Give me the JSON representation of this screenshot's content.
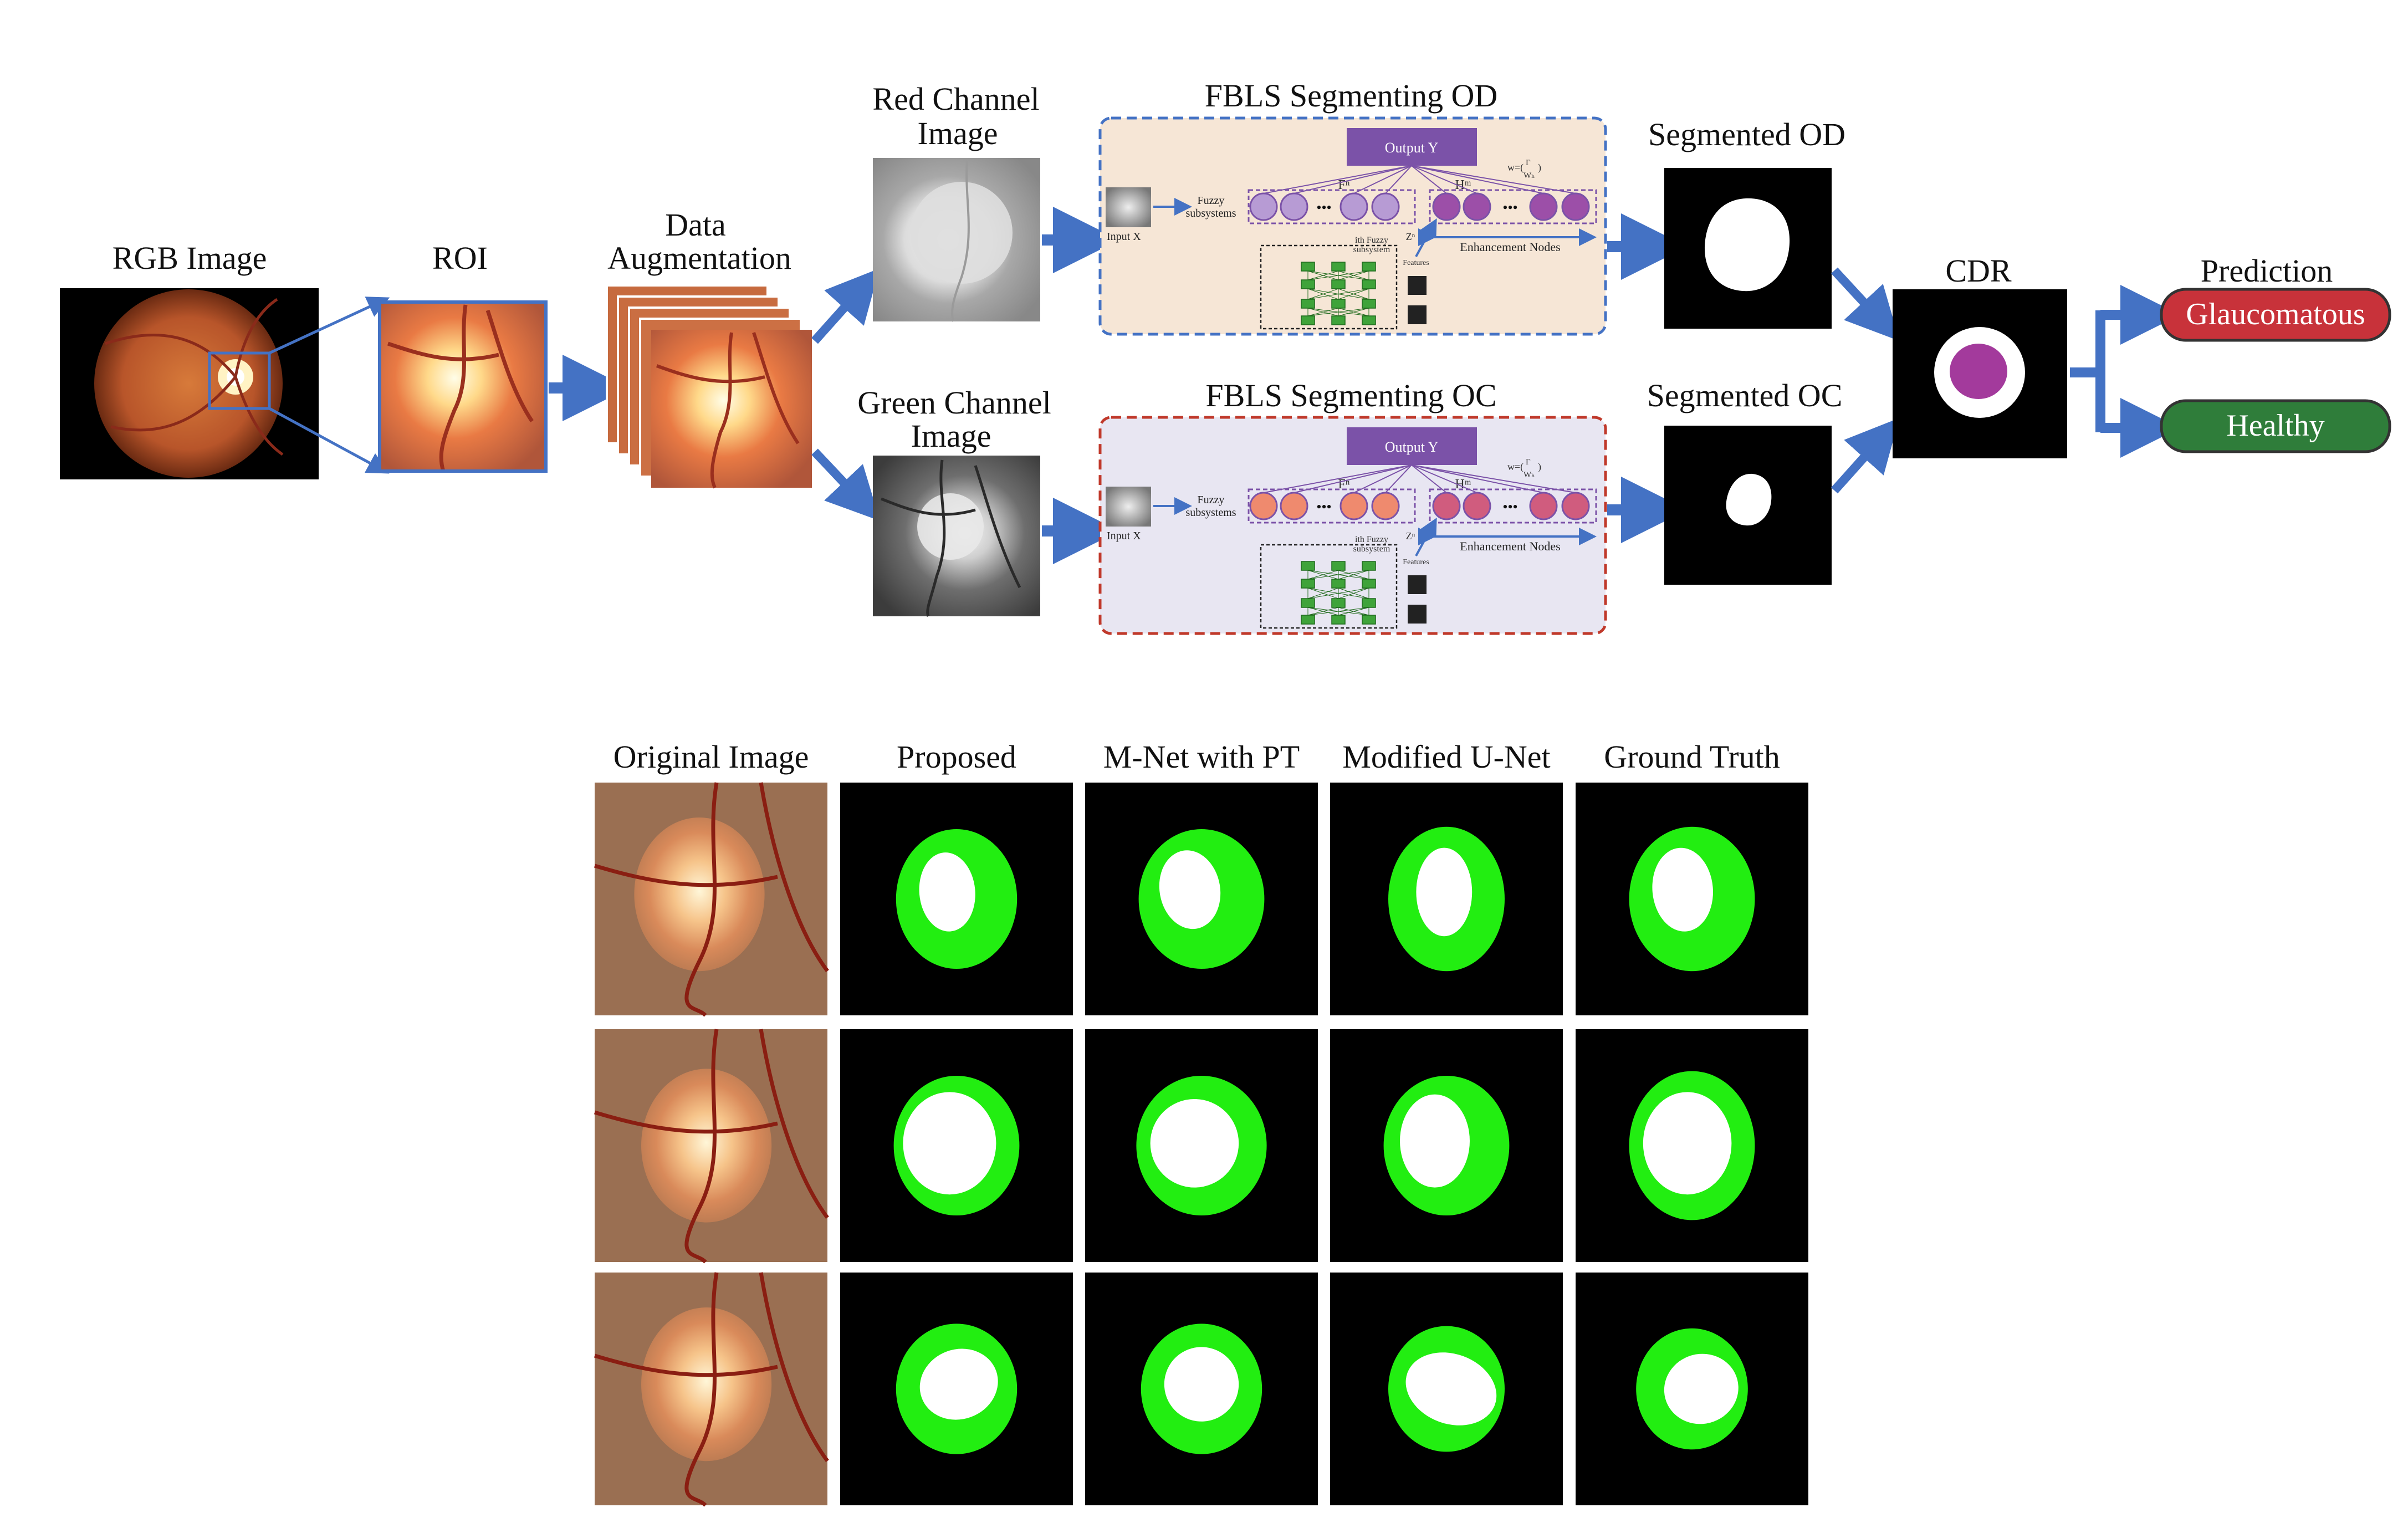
{
  "pipeline": {
    "rgb_label": "RGB Image",
    "roi_label": "ROI",
    "aug_label_1": "Data",
    "aug_label_2": "Augmentation",
    "red_label_1": "Red Channel",
    "red_label_2": "Image",
    "green_label_1": "Green Channel",
    "green_label_2": "Image",
    "fbls_od_title": "FBLS Segmenting OD",
    "fbls_oc_title": "FBLS Segmenting OC",
    "seg_od_label": "Segmented OD",
    "seg_oc_label": "Segmented OC",
    "cdr_label": "CDR",
    "prediction_label": "Prediction",
    "glaucomatous": "Glaucomatous",
    "healthy": "Healthy",
    "fbls": {
      "output": "Output Y",
      "input": "Input X",
      "fuzzy": "Fuzzy",
      "subsystems": "subsystems",
      "enh_nodes": "Enhancement Nodes",
      "features": "Features",
      "ith_fuzzy": "ith Fuzzy",
      "ith_subsystem": "subsystem",
      "fn": "Fⁿ",
      "hm": "Hᵐ",
      "zn": "Zⁿ",
      "w": "w=(",
      "w_inner_top": "Γ",
      "w_inner_bot": "Wₕ",
      "w_close": ")"
    }
  },
  "comparison": {
    "columns": [
      "Original Image",
      "Proposed",
      "M-Net with PT",
      "Modified U-Net",
      "Ground Truth"
    ]
  },
  "colors": {
    "arrow": "#4472c4",
    "od_panel": "#f6e6d6",
    "oc_panel": "#e8e6f2",
    "od_border": "#4472c4",
    "oc_border": "#c0392b",
    "glaucomatous": "#c8323a",
    "healthy": "#2f7d3a",
    "seg_green": "#22ee11",
    "cup_purple": "#a33a9c",
    "output_purple": "#7b52a8"
  }
}
